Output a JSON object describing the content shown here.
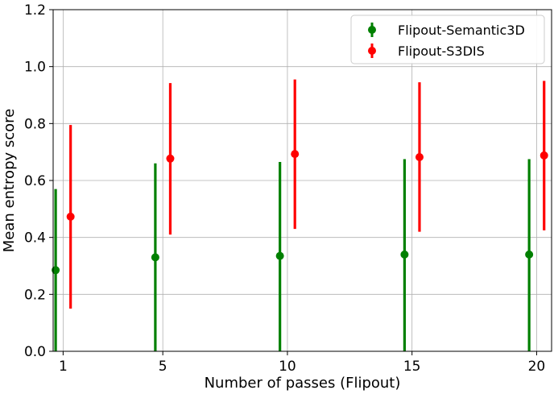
{
  "chart_data": {
    "type": "scatter",
    "error_bars": true,
    "x_categories": [
      "1",
      "5",
      "10",
      "15",
      "20"
    ],
    "xlabel": "Number of passes (Flipout)",
    "ylabel": "Mean entropy score",
    "ylim": [
      0.0,
      1.2
    ],
    "yticks": [
      "0.0",
      "0.2",
      "0.4",
      "0.6",
      "0.8",
      "1.0",
      "1.2"
    ],
    "grid": true,
    "legend_position": "top-right",
    "series": [
      {
        "name": "Flipout-Semantic3D",
        "color": "#008000",
        "values": [
          0.285,
          0.33,
          0.335,
          0.34,
          0.34
        ],
        "err_low": [
          0.0,
          0.0,
          0.0,
          0.0,
          0.0
        ],
        "err_high": [
          0.57,
          0.66,
          0.665,
          0.675,
          0.675
        ]
      },
      {
        "name": "Flipout-S3DIS",
        "color": "#ff0000",
        "values": [
          0.473,
          0.677,
          0.693,
          0.682,
          0.688
        ],
        "err_low": [
          0.15,
          0.41,
          0.43,
          0.42,
          0.425
        ],
        "err_high": [
          0.795,
          0.942,
          0.955,
          0.945,
          0.95
        ]
      }
    ]
  }
}
